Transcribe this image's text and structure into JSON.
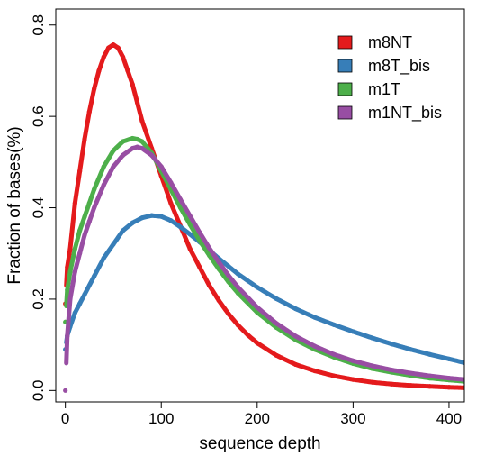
{
  "chart_data": {
    "type": "scatter",
    "xlabel": "sequence depth",
    "ylabel": "Fraction of bases(%)",
    "xlim": [
      -10,
      416
    ],
    "ylim": [
      -0.025,
      0.835
    ],
    "x_ticks": [
      0,
      100,
      200,
      300,
      400
    ],
    "y_ticks": [
      0.0,
      0.2,
      0.4,
      0.6,
      0.8
    ],
    "x_tick_labels": [
      "0",
      "100",
      "200",
      "300",
      "400"
    ],
    "y_tick_labels": [
      "0.0",
      "0.2",
      "0.4",
      "0.6",
      "0.8"
    ],
    "grid": false,
    "legend_position": "top-right",
    "series": [
      {
        "name": "m8NT",
        "color": "#E41A1C",
        "x": [
          0,
          2,
          5,
          10,
          15,
          20,
          25,
          30,
          35,
          40,
          45,
          50,
          55,
          60,
          65,
          70,
          75,
          80,
          90,
          100,
          110,
          120,
          130,
          140,
          150,
          160,
          170,
          180,
          190,
          200,
          220,
          240,
          260,
          280,
          300,
          320,
          340,
          360,
          380,
          400,
          416
        ],
        "y": [
          0.19,
          0.27,
          0.31,
          0.41,
          0.48,
          0.55,
          0.61,
          0.66,
          0.7,
          0.73,
          0.75,
          0.757,
          0.75,
          0.73,
          0.7,
          0.67,
          0.63,
          0.59,
          0.53,
          0.47,
          0.41,
          0.36,
          0.31,
          0.27,
          0.23,
          0.197,
          0.168,
          0.143,
          0.122,
          0.104,
          0.077,
          0.057,
          0.043,
          0.032,
          0.024,
          0.018,
          0.014,
          0.011,
          0.009,
          0.007,
          0.006
        ]
      },
      {
        "name": "m8T_bis",
        "color": "#377EB8",
        "x": [
          0,
          2,
          5,
          10,
          15,
          20,
          30,
          40,
          50,
          60,
          70,
          80,
          90,
          100,
          110,
          120,
          130,
          140,
          150,
          160,
          170,
          180,
          200,
          220,
          240,
          260,
          280,
          300,
          320,
          340,
          360,
          380,
          400,
          416
        ],
        "y": [
          0.09,
          0.12,
          0.14,
          0.17,
          0.19,
          0.21,
          0.25,
          0.29,
          0.32,
          0.35,
          0.367,
          0.378,
          0.383,
          0.381,
          0.372,
          0.358,
          0.342,
          0.325,
          0.307,
          0.289,
          0.272,
          0.255,
          0.226,
          0.201,
          0.179,
          0.16,
          0.144,
          0.129,
          0.115,
          0.102,
          0.09,
          0.079,
          0.069,
          0.061
        ]
      },
      {
        "name": "m1T",
        "color": "#4DAF4A",
        "x": [
          0,
          2,
          5,
          10,
          15,
          20,
          25,
          30,
          40,
          50,
          60,
          70,
          75,
          80,
          90,
          100,
          110,
          120,
          130,
          140,
          150,
          160,
          170,
          180,
          200,
          220,
          240,
          260,
          280,
          300,
          320,
          340,
          360,
          380,
          400,
          416
        ],
        "y": [
          0.15,
          0.22,
          0.26,
          0.31,
          0.35,
          0.38,
          0.41,
          0.44,
          0.49,
          0.525,
          0.545,
          0.552,
          0.55,
          0.545,
          0.52,
          0.48,
          0.44,
          0.4,
          0.363,
          0.328,
          0.296,
          0.266,
          0.238,
          0.213,
          0.171,
          0.138,
          0.111,
          0.09,
          0.073,
          0.059,
          0.048,
          0.04,
          0.033,
          0.027,
          0.023,
          0.02
        ]
      },
      {
        "name": "m1NT_bis",
        "color": "#984EA3",
        "x": [
          0,
          2,
          5,
          10,
          15,
          20,
          25,
          30,
          40,
          50,
          60,
          70,
          75,
          80,
          90,
          100,
          110,
          120,
          130,
          140,
          150,
          160,
          170,
          180,
          200,
          220,
          240,
          260,
          280,
          300,
          320,
          340,
          360,
          380,
          400,
          416
        ],
        "y": [
          0.0,
          0.12,
          0.2,
          0.26,
          0.3,
          0.34,
          0.37,
          0.4,
          0.45,
          0.49,
          0.515,
          0.53,
          0.533,
          0.53,
          0.515,
          0.49,
          0.455,
          0.418,
          0.382,
          0.346,
          0.312,
          0.281,
          0.252,
          0.226,
          0.182,
          0.147,
          0.119,
          0.097,
          0.079,
          0.065,
          0.054,
          0.045,
          0.038,
          0.032,
          0.027,
          0.024
        ]
      }
    ]
  }
}
